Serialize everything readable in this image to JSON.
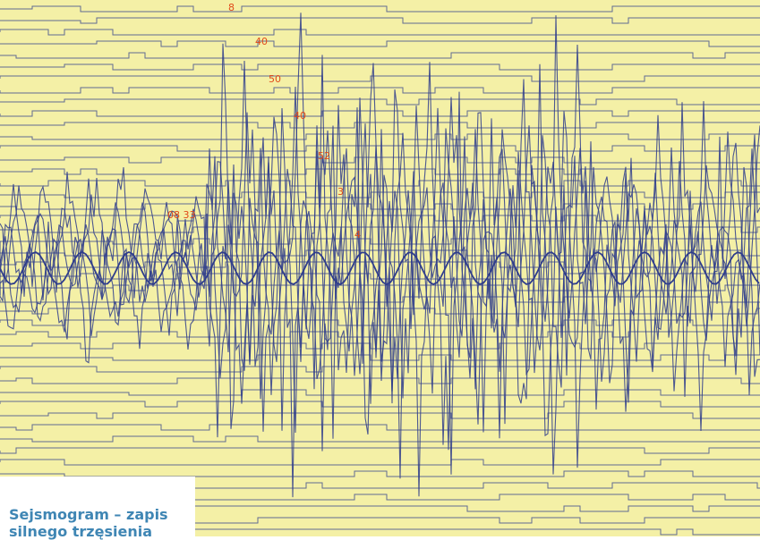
{
  "image": {
    "subject": "seismogram-photo",
    "paper_color": "#f4f0a6",
    "trace_color": "#2f3d8c",
    "marker_color": "#e04a1a"
  },
  "caption": {
    "text": "Sejsmogram – zapis silnego trzęsienia"
  },
  "markers": [
    {
      "text": "8"
    },
    {
      "text": "40"
    },
    {
      "text": "50"
    },
    {
      "text": "40"
    },
    {
      "text": "52"
    },
    {
      "text": "3"
    },
    {
      "text": "4"
    },
    {
      "text": "08 33"
    }
  ]
}
